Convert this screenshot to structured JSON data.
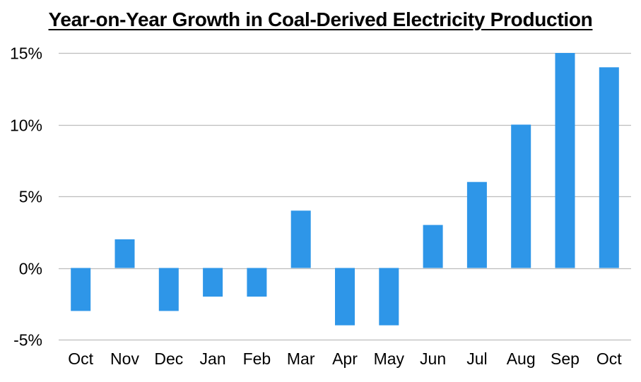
{
  "chart_data": {
    "type": "bar",
    "title": "Year-on-Year Growth in Coal-Derived Electricity Production",
    "xlabel": "",
    "ylabel": "",
    "categories": [
      "Oct",
      "Nov",
      "Dec",
      "Jan",
      "Feb",
      "Mar",
      "Apr",
      "May",
      "Jun",
      "Jul",
      "Aug",
      "Sep",
      "Oct"
    ],
    "values": [
      -3,
      2,
      -3,
      -2,
      -2,
      4,
      -4,
      -4,
      3,
      6,
      10,
      15,
      14
    ],
    "value_unit": "%",
    "ylim": [
      -5,
      15
    ],
    "yticks": [
      -5,
      0,
      5,
      10,
      15
    ],
    "ytick_labels": [
      "-5%",
      "0%",
      "5%",
      "10%",
      "15%"
    ],
    "grid": true,
    "legend": "none",
    "bar_color": "#2E96E8",
    "grid_color": "#BDBDBD"
  }
}
